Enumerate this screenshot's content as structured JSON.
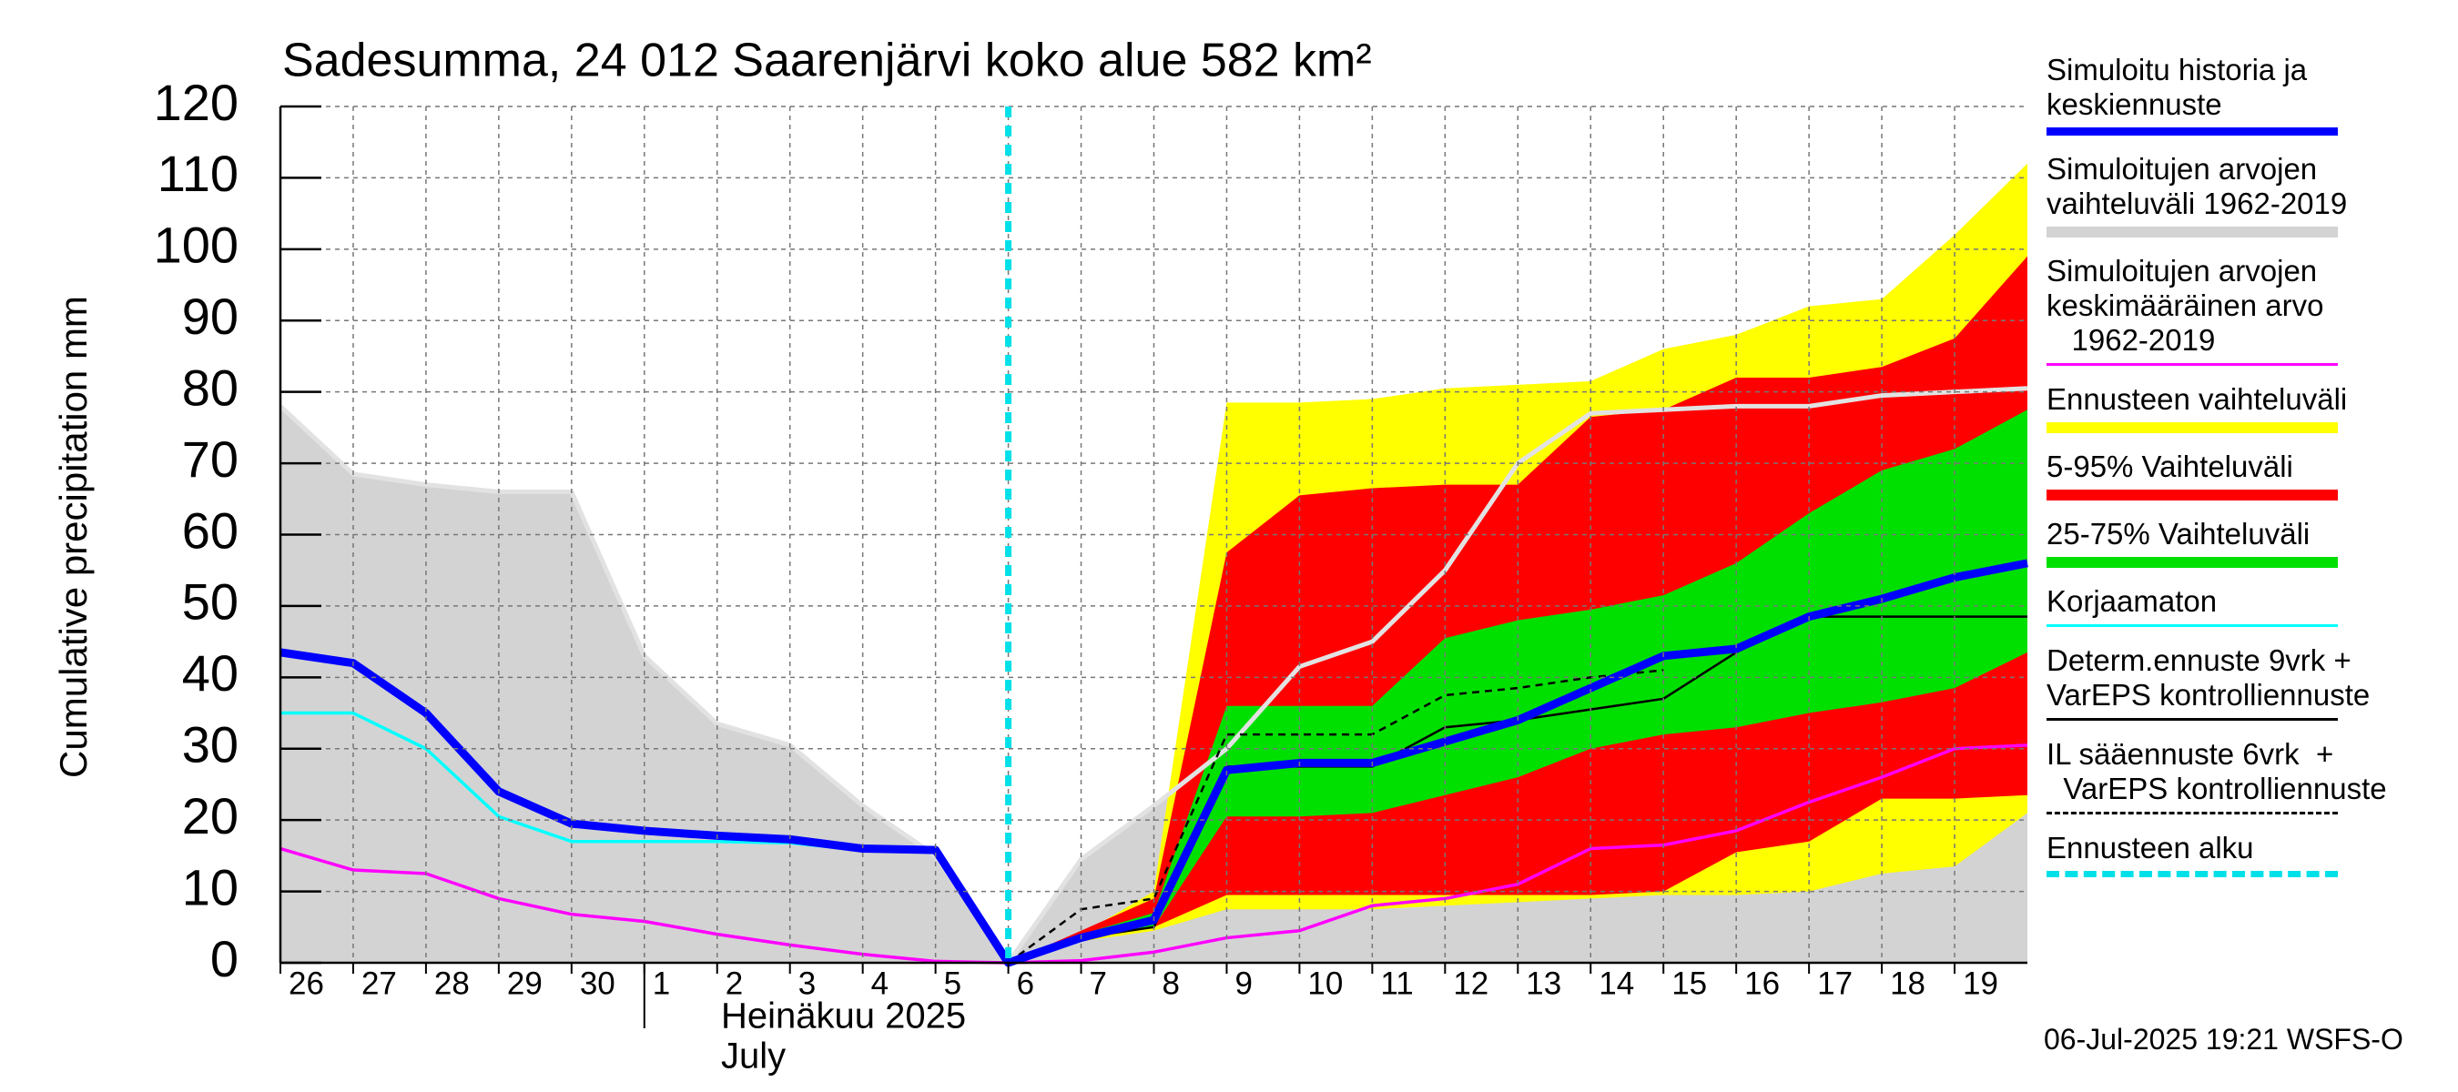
{
  "chart_data": {
    "type": "line",
    "title": "Sadesumma, 24 012 Saarenjärvi koko alue 582 km²",
    "ylabel": "Cumulative precipitation   mm",
    "month_label": "Heinäkuu  2025",
    "month_label_en": "July",
    "month_start": 5,
    "footer": "06-Jul-2025 19:21 WSFS-O",
    "x": [
      0,
      1,
      2,
      3,
      4,
      5,
      6,
      7,
      8,
      9,
      10,
      11,
      12,
      13,
      14,
      15,
      16,
      17,
      18,
      19,
      20,
      21,
      22,
      23,
      24
    ],
    "xlim": [
      0,
      24
    ],
    "xticks": [
      {
        "value": 0,
        "label": "26"
      },
      {
        "value": 1,
        "label": "27"
      },
      {
        "value": 2,
        "label": "28"
      },
      {
        "value": 3,
        "label": "29"
      },
      {
        "value": 4,
        "label": "30"
      },
      {
        "value": 5,
        "label": "1"
      },
      {
        "value": 6,
        "label": "2"
      },
      {
        "value": 7,
        "label": "3"
      },
      {
        "value": 8,
        "label": "4"
      },
      {
        "value": 9,
        "label": "5"
      },
      {
        "value": 10,
        "label": "6"
      },
      {
        "value": 11,
        "label": "7"
      },
      {
        "value": 12,
        "label": "8"
      },
      {
        "value": 13,
        "label": "9"
      },
      {
        "value": 14,
        "label": "10"
      },
      {
        "value": 15,
        "label": "11"
      },
      {
        "value": 16,
        "label": "12"
      },
      {
        "value": 17,
        "label": "13"
      },
      {
        "value": 18,
        "label": "14"
      },
      {
        "value": 19,
        "label": "15"
      },
      {
        "value": 20,
        "label": "16"
      },
      {
        "value": 21,
        "label": "17"
      },
      {
        "value": 22,
        "label": "18"
      },
      {
        "value": 23,
        "label": "19"
      }
    ],
    "ylim": [
      0,
      120
    ],
    "yticks": [
      0,
      10,
      20,
      30,
      40,
      50,
      60,
      70,
      80,
      90,
      100,
      110,
      120
    ],
    "grid": true,
    "series": [
      {
        "name": "Simuloitu historia ja\nkeskiennuste",
        "kind": "line",
        "color": "#0000ff",
        "linewidth": 9,
        "style": "solid",
        "values": [
          43.5,
          42,
          35,
          24,
          19.5,
          18.5,
          17.8,
          17.3,
          16,
          15.8,
          0,
          3.5,
          6,
          27,
          28,
          28,
          31,
          34,
          38.5,
          43,
          44,
          48.5,
          51,
          54,
          56
        ]
      },
      {
        "name": "Simuloitujen arvojen\nvaihteluväli 1962-2019",
        "kind": "band",
        "color": "#d3d3d3",
        "edge_color": "#e2e2e2",
        "low": [
          0,
          0,
          0,
          0,
          0,
          0,
          0,
          0,
          0,
          0,
          0,
          0,
          0,
          0,
          0,
          0,
          0,
          0,
          0,
          0,
          0,
          0,
          0,
          0,
          0
        ],
        "high": [
          78,
          68.5,
          67,
          66,
          66,
          43,
          33.5,
          30.5,
          22,
          15,
          0,
          14.5,
          22,
          30,
          41.5,
          45,
          55,
          70,
          77,
          77.5,
          78,
          78,
          79.5,
          80,
          80.5
        ]
      },
      {
        "name": "Simuloitujen arvojen\nkeskimääräinen arvo\n   1962-2019",
        "kind": "line",
        "color": "#ff00ff",
        "linewidth": 3.5,
        "style": "solid",
        "values": [
          16,
          13,
          12.5,
          9,
          6.8,
          5.8,
          4,
          2.5,
          1.2,
          0.2,
          0,
          0.3,
          1.5,
          3.5,
          4.5,
          8,
          9,
          11,
          16,
          16.5,
          18.5,
          22.5,
          26,
          30,
          30.5
        ]
      },
      {
        "name": "Ennusteen vaihteluväli",
        "kind": "band",
        "color": "#ffff00",
        "low": [
          null,
          null,
          null,
          null,
          null,
          null,
          null,
          null,
          null,
          null,
          0,
          3,
          4.5,
          7.5,
          7.5,
          7.5,
          8,
          8.5,
          9,
          9.5,
          9.5,
          10,
          12.5,
          13.5,
          21
        ],
        "high": [
          null,
          null,
          null,
          null,
          null,
          null,
          null,
          null,
          null,
          null,
          0,
          4,
          10,
          78.5,
          78.5,
          79,
          80.5,
          81,
          81.5,
          86,
          88,
          92,
          93,
          102,
          112
        ]
      },
      {
        "name": "5-95% Vaihteluväli",
        "kind": "band",
        "color": "#ff0000",
        "low": [
          null,
          null,
          null,
          null,
          null,
          null,
          null,
          null,
          null,
          null,
          0,
          3.5,
          5,
          9.5,
          9.5,
          9.5,
          9.5,
          9.5,
          9.5,
          10,
          15.5,
          17,
          23,
          23,
          23.5
        ],
        "high": [
          null,
          null,
          null,
          null,
          null,
          null,
          null,
          null,
          null,
          null,
          0,
          4.5,
          9,
          57.5,
          65.5,
          66.5,
          67,
          67,
          76.5,
          77.5,
          82,
          82,
          83.5,
          87.5,
          99
        ]
      },
      {
        "name": "25-75% Vaihteluväli",
        "kind": "band",
        "color": "#00e000",
        "low": [
          null,
          null,
          null,
          null,
          null,
          null,
          null,
          null,
          null,
          null,
          0,
          3.5,
          5,
          20.5,
          20.5,
          21,
          23.5,
          26,
          30,
          32,
          33,
          35,
          36.5,
          38.5,
          43.5
        ],
        "high": [
          null,
          null,
          null,
          null,
          null,
          null,
          null,
          null,
          null,
          null,
          0,
          4,
          7,
          36,
          36,
          36,
          45.5,
          48,
          49.5,
          51.5,
          56,
          63,
          69,
          72,
          77.5
        ]
      },
      {
        "name": "Korjaamaton",
        "kind": "line",
        "color": "#00ffff",
        "linewidth": 3.5,
        "style": "solid",
        "values": [
          35,
          35,
          30,
          20.5,
          17,
          17,
          17,
          16.8,
          15.8,
          15.5,
          0,
          null,
          null,
          null,
          null,
          null,
          null,
          null,
          null,
          null,
          null,
          null,
          null,
          null,
          null
        ]
      },
      {
        "name": "Determ.ennuste 9vrk +\nVarEPS kontrolliennuste",
        "kind": "line",
        "color": "#000000",
        "linewidth": 2.5,
        "style": "solid",
        "values": [
          null,
          null,
          null,
          null,
          null,
          null,
          null,
          null,
          null,
          null,
          0,
          3.5,
          5,
          27.5,
          27.5,
          27.5,
          33,
          34,
          35.5,
          37,
          43.5,
          48.5,
          48.5,
          48.5,
          48.5
        ]
      },
      {
        "name": "IL sääennuste 6vrk  +\n  VarEPS kontrolliennuste",
        "kind": "line",
        "color": "#000000",
        "linewidth": 2.5,
        "style": "dashed",
        "values": [
          null,
          null,
          null,
          null,
          null,
          null,
          null,
          null,
          null,
          null,
          0,
          7.5,
          9,
          32,
          32,
          32,
          37.5,
          38.5,
          40,
          41,
          null,
          null,
          null,
          null,
          null
        ]
      },
      {
        "name": "Ennusteen alku",
        "kind": "vline",
        "color": "#00e0e8",
        "linewidth": 7,
        "style": "dashed",
        "x": 10
      }
    ]
  }
}
